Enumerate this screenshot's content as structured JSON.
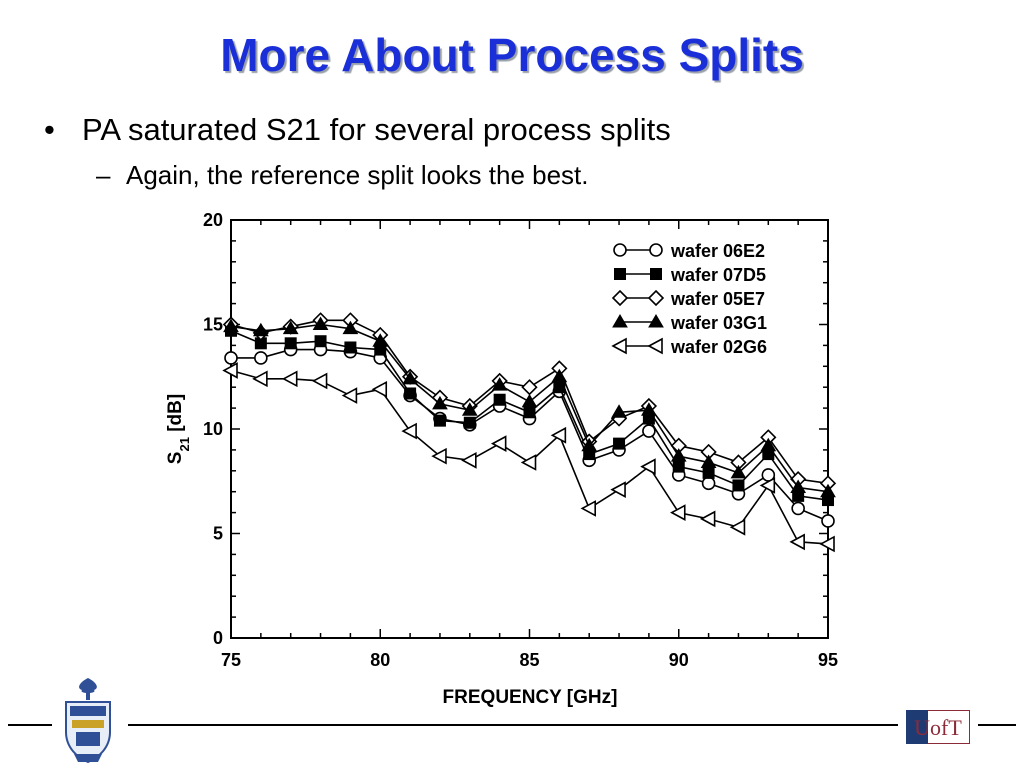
{
  "slide": {
    "title": "More About Process Splits",
    "bullet": "PA saturated S21 for several process splits",
    "sub_bullet": "Again, the reference split looks the best.",
    "bullet_marker": "•",
    "sub_marker": "–"
  },
  "logos": {
    "left": "university-crest",
    "right": "UofT"
  },
  "chart_data": {
    "type": "line",
    "xlabel": "FREQUENCY [GHz]",
    "ylabel": "S21 [dB]",
    "xlim": [
      75,
      95
    ],
    "ylim": [
      0,
      20
    ],
    "xticks": [
      75,
      80,
      85,
      90,
      95
    ],
    "yticks": [
      0,
      5,
      10,
      15,
      20
    ],
    "grid": false,
    "legend_position": "top-right",
    "x": [
      75,
      76,
      77,
      78,
      79,
      80,
      81,
      82,
      83,
      84,
      85,
      86,
      87,
      88,
      89,
      90,
      91,
      92,
      93,
      94,
      95
    ],
    "series": [
      {
        "name": "wafer 06E2",
        "marker": "circle-open",
        "values": [
          13.4,
          13.4,
          13.8,
          13.8,
          13.7,
          13.4,
          11.6,
          10.5,
          10.2,
          11.1,
          10.5,
          11.8,
          8.5,
          9.0,
          9.9,
          7.8,
          7.4,
          6.9,
          7.8,
          6.2,
          5.6
        ]
      },
      {
        "name": "wafer 07D5",
        "marker": "square-filled",
        "values": [
          14.7,
          14.1,
          14.1,
          14.2,
          13.9,
          13.8,
          11.7,
          10.4,
          10.3,
          11.4,
          10.8,
          12.0,
          8.8,
          9.3,
          10.5,
          8.2,
          7.9,
          7.3,
          8.8,
          6.8,
          6.6
        ]
      },
      {
        "name": "wafer 05E7",
        "marker": "diamond-open",
        "values": [
          15.0,
          14.6,
          14.9,
          15.2,
          15.2,
          14.5,
          12.5,
          11.5,
          11.1,
          12.3,
          12.0,
          12.9,
          9.4,
          10.5,
          11.1,
          9.2,
          8.9,
          8.4,
          9.6,
          7.6,
          7.4
        ]
      },
      {
        "name": "wafer 03G1",
        "marker": "triangle-up-filled",
        "values": [
          14.9,
          14.7,
          14.8,
          15.0,
          14.8,
          14.2,
          12.4,
          11.2,
          10.9,
          12.1,
          11.3,
          12.5,
          9.2,
          10.8,
          10.9,
          8.7,
          8.4,
          7.9,
          9.2,
          7.2,
          7.0
        ]
      },
      {
        "name": "wafer 02G6",
        "marker": "triangle-left-open",
        "values": [
          12.8,
          12.4,
          12.4,
          12.3,
          11.6,
          11.9,
          9.9,
          8.7,
          8.5,
          9.3,
          8.4,
          9.7,
          6.2,
          7.1,
          8.2,
          6.0,
          5.7,
          5.3,
          7.3,
          4.6,
          4.5
        ]
      }
    ]
  }
}
